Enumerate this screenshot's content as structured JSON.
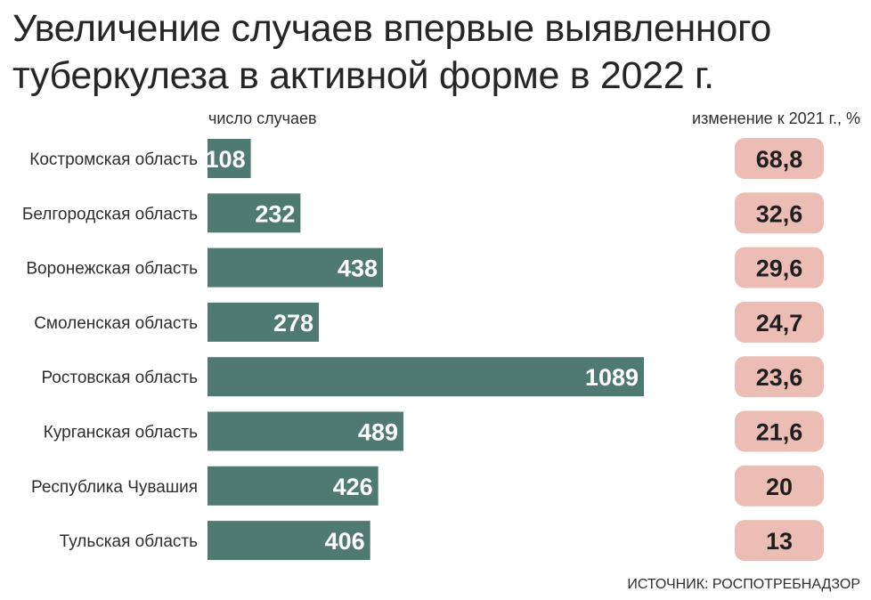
{
  "title_line1": "Увеличение случаев впервые выявленного",
  "title_line2": "туберкулеза в активной форме в 2022 г.",
  "count_label": "число случаев",
  "change_label": "изменение к 2021 г., %",
  "source": "ИСТОЧНИК: РОСПОТРЕБНАДЗОР",
  "colors": {
    "bar": "#4f7a72",
    "bar_text": "#ffffff",
    "badge": "#ebbdb4",
    "badge_text": "#1f1f1f",
    "label": "#2e2e2e"
  },
  "chart_data": {
    "type": "bar",
    "orientation": "horizontal",
    "categories": [
      "Костромская область",
      "Белгородская область",
      "Воронежская область",
      "Смоленская область",
      "Ростовская область",
      "Курганская область",
      "Республика Чувашия",
      "Тульская область"
    ],
    "series": [
      {
        "name": "число случаев",
        "values": [
          108,
          232,
          438,
          278,
          1089,
          489,
          426,
          406
        ]
      },
      {
        "name": "изменение к 2021 г., %",
        "values": [
          "68,8",
          "32,6",
          "29,6",
          "24,7",
          "23,6",
          "21,6",
          "20",
          "13"
        ]
      }
    ]
  }
}
